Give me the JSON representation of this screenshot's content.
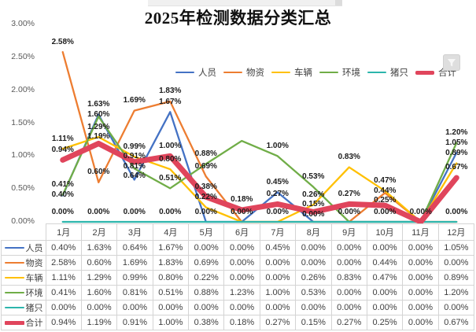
{
  "chart_data": {
    "type": "line",
    "title": "2025年检测数据分类汇总",
    "categories": [
      "1月",
      "2月",
      "3月",
      "4月",
      "5月",
      "6月",
      "7月",
      "8月",
      "9月",
      "10月",
      "11月",
      "12月"
    ],
    "y_ticks": [
      {
        "label": "3.00%",
        "value": 3.0
      },
      {
        "label": "2.50%",
        "value": 2.5
      },
      {
        "label": "2.00%",
        "value": 2.0
      },
      {
        "label": "1.50%",
        "value": 1.5
      },
      {
        "label": "1.00%",
        "value": 1.0
      },
      {
        "label": "0.50%",
        "value": 0.5
      },
      {
        "label": "0.00%",
        "value": 0.0
      }
    ],
    "ylim": [
      0,
      3
    ],
    "gridlines": false,
    "legend_position": "top-right",
    "data_table_shown": true,
    "value_format": {
      "decimals": 2,
      "suffix": "%"
    },
    "series": [
      {
        "name": "人员",
        "color": "#4472C4",
        "line_width": 2.3,
        "values": [
          0.4,
          1.63,
          0.64,
          1.67,
          0.0,
          0.0,
          0.45,
          0.0,
          0.0,
          0.0,
          0.0,
          1.05
        ],
        "hidden_label_indexes": []
      },
      {
        "name": "物资",
        "color": "#ED7D31",
        "line_width": 2.3,
        "values": [
          2.58,
          0.6,
          1.69,
          1.83,
          0.69,
          0.0,
          0.0,
          0.0,
          0.0,
          0.44,
          0.0,
          0.0
        ],
        "hidden_label_indexes": []
      },
      {
        "name": "车辆",
        "color": "#FFC000",
        "line_width": 2.3,
        "values": [
          1.11,
          1.29,
          0.99,
          0.8,
          0.22,
          0.0,
          0.0,
          0.26,
          0.83,
          0.47,
          0.0,
          0.89
        ],
        "hidden_label_indexes": []
      },
      {
        "name": "环境",
        "color": "#70AD47",
        "line_width": 2.3,
        "values": [
          0.41,
          1.6,
          0.81,
          0.51,
          0.88,
          1.23,
          1.0,
          0.53,
          0.0,
          0.0,
          0.0,
          1.2
        ],
        "hidden_label_indexes": [
          5
        ]
      },
      {
        "name": "猪只",
        "color": "#2CB5AC",
        "line_width": 2.3,
        "values": [
          0.0,
          0.0,
          0.0,
          0.0,
          0.0,
          0.0,
          0.0,
          0.0,
          0.0,
          0.0,
          0.0,
          0.0
        ],
        "hidden_label_indexes": []
      },
      {
        "name": "合计",
        "color": "#E0455C",
        "line_width": 7,
        "values": [
          0.94,
          1.19,
          0.91,
          1.0,
          0.38,
          0.18,
          0.27,
          0.15,
          0.27,
          0.25,
          0.0,
          0.67
        ],
        "hidden_label_indexes": []
      }
    ]
  },
  "controls": {
    "chart_filter_icon": "chart-filter"
  },
  "ui_colors": {
    "axis_text": "#595959",
    "table_text": "#404040",
    "table_border": "#d4d4d4",
    "label_text": "#1c1c1c"
  }
}
